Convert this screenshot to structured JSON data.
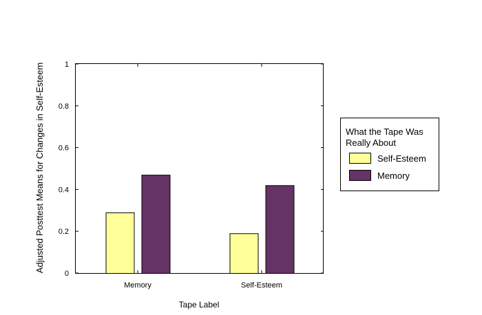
{
  "chart_data": {
    "type": "bar",
    "title": "",
    "xlabel": "Tape Label",
    "ylabel": "Adjusted Posttest Means for Changes in Self-Esteem",
    "ylim": [
      0,
      1
    ],
    "yticks": [
      "0",
      "0.2",
      "0.4",
      "0.6",
      "0.8",
      "1"
    ],
    "categories": [
      "Memory",
      "Self-Esteem"
    ],
    "series": [
      {
        "name": "Self-Esteem",
        "color": "#ffff99",
        "values": [
          0.29,
          0.19
        ]
      },
      {
        "name": "Memory",
        "color": "#663366",
        "values": [
          0.47,
          0.42
        ]
      }
    ],
    "legend": {
      "title_line1": "What the Tape Was",
      "title_line2": "Really About",
      "placement": "right"
    },
    "grid": false
  }
}
